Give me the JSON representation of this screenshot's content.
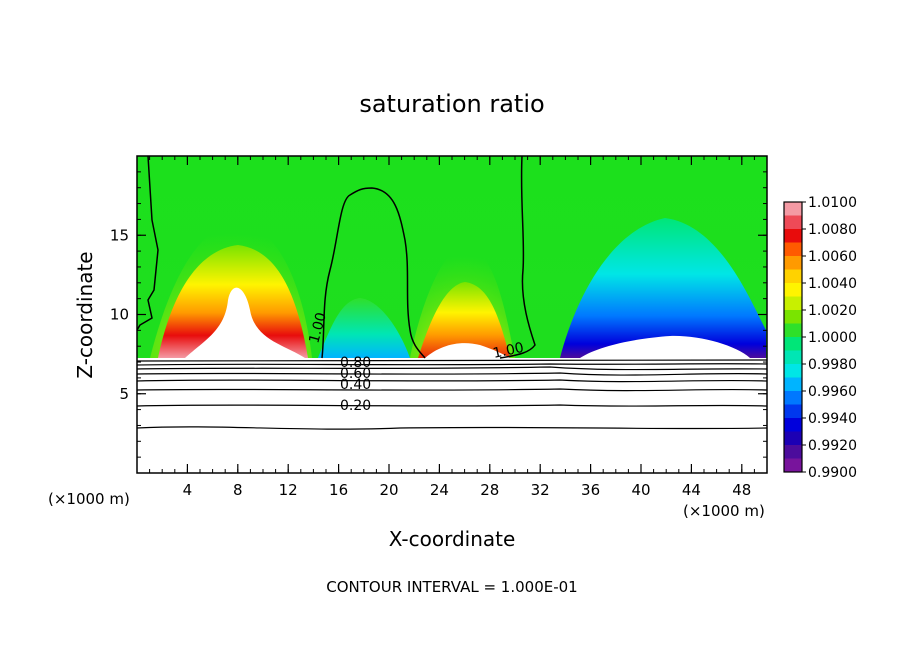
{
  "chart_data": {
    "type": "heatmap",
    "title": "saturation ratio",
    "xlabel": "X-coordinate",
    "ylabel": "Z-coordinate",
    "x_unit_left": "(×1000 m)",
    "x_unit_right": "(×1000 m)",
    "xlim": [
      0,
      50
    ],
    "ylim": [
      0,
      20
    ],
    "xticks": [
      4,
      8,
      12,
      16,
      20,
      24,
      28,
      32,
      36,
      40,
      44,
      48
    ],
    "yticks": [
      5,
      10,
      15
    ],
    "colorbar": {
      "min": 0.99,
      "max": 1.01,
      "labels": [
        "1.0100",
        "1.0080",
        "1.0060",
        "1.0040",
        "1.0020",
        "1.0000",
        "0.9980",
        "0.9960",
        "0.9940",
        "0.9920",
        "0.9900"
      ],
      "colors": [
        "#f49aa4",
        "#ee4a57",
        "#e80c0c",
        "#ff5a00",
        "#ff9a00",
        "#ffd200",
        "#fff400",
        "#c8f000",
        "#7ae400",
        "#2ee02a",
        "#00e678",
        "#00e6b4",
        "#00e6e6",
        "#00b4ff",
        "#0078ff",
        "#0038ee",
        "#0000dc",
        "#1c00b4",
        "#4c0c9c",
        "#78149c"
      ]
    },
    "contour_labels": [
      "1.00",
      "1.00",
      "0.80",
      "0.60",
      "0.40",
      "0.20"
    ],
    "note": "CONTOUR INTERVAL = 1.000E-01"
  }
}
